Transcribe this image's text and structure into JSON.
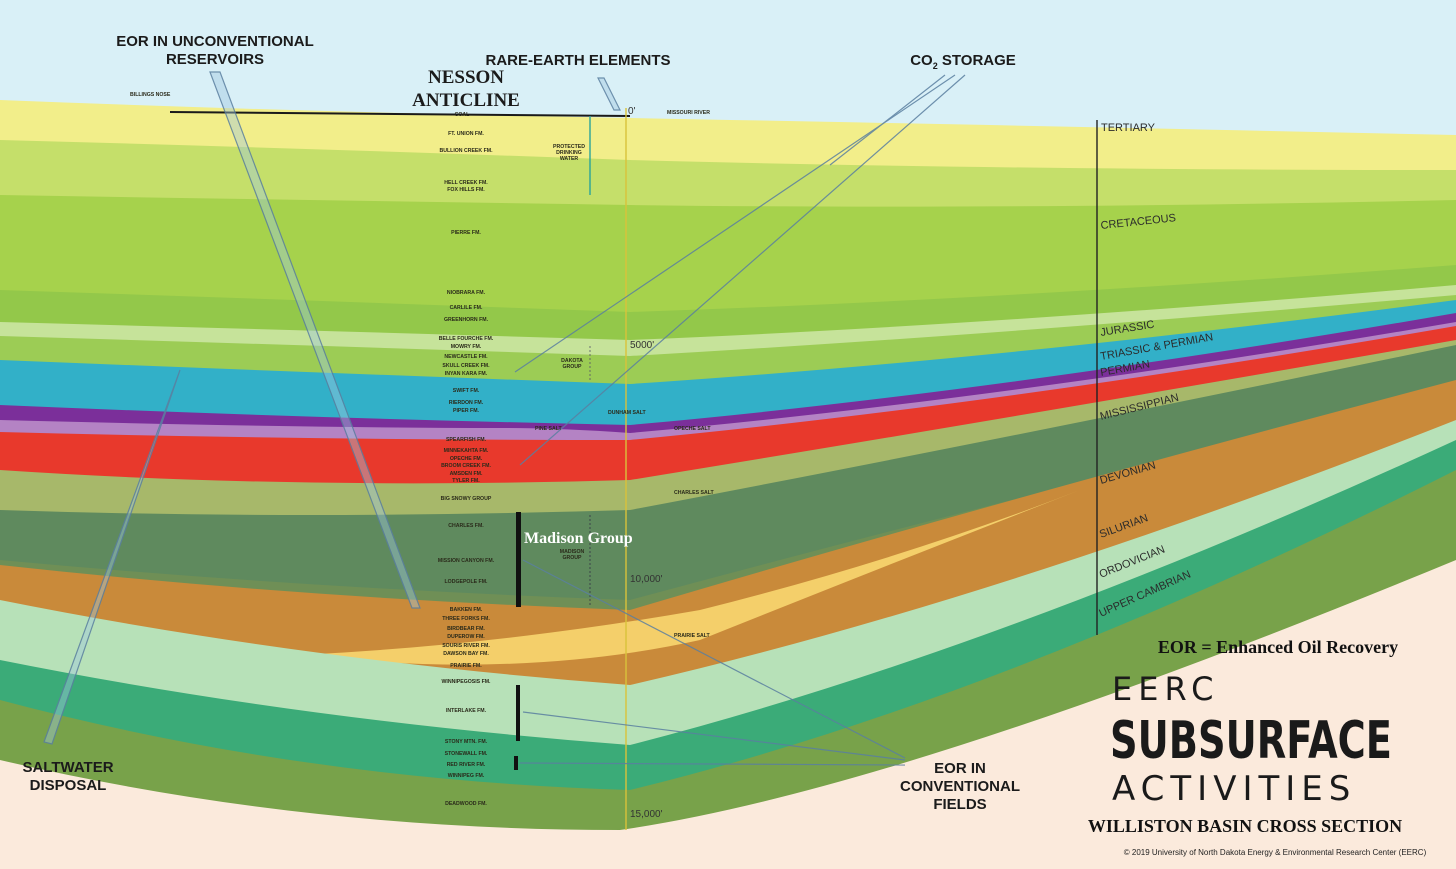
{
  "title": "WILLISTON BASIN CROSS SECTION",
  "brand": {
    "line1": "EERC",
    "line2": "SUBSURFACE",
    "line3": "ACTIVITIES"
  },
  "eor_definition": "EOR = Enhanced Oil Recovery",
  "copyright": "© 2019 University of North Dakota Energy & Environmental Research Center (EERC)",
  "callouts": {
    "eor_unconventional_1": "EOR IN UNCONVENTIONAL",
    "eor_unconventional_2": "RESERVOIRS",
    "rare_earth": "RARE-EARTH ELEMENTS",
    "co2_storage": "CO",
    "co2_sub": "2",
    "co2_storage_rest": " STORAGE",
    "nesson_1": "NESSON",
    "nesson_2": "ANTICLINE",
    "saltwater_1": "SALTWATER",
    "saltwater_2": "DISPOSAL",
    "eor_conventional_1": "EOR IN",
    "eor_conventional_2": "CONVENTIONAL",
    "eor_conventional_3": "FIELDS",
    "madison_group": "Madison Group"
  },
  "surface_labels": {
    "billings_nose": "BILLINGS NOSE",
    "missouri_river": "MISSOURI RIVER",
    "coal": "COAL",
    "protected_water_1": "PROTECTED",
    "protected_water_2": "DRINKING",
    "protected_water_3": "WATER",
    "dakota_group_1": "DAKOTA",
    "dakota_group_2": "GROUP",
    "madison_small_1": "MADISON",
    "madison_small_2": "GROUP",
    "dunham_salt": "DUNHAM SALT",
    "pine_salt": "PINE SALT",
    "opeche_salt": "OPECHE SALT",
    "charles_salt": "CHARLES SALT",
    "prairie_salt": "PRAIRIE SALT"
  },
  "depths": [
    "0'",
    "5000'",
    "10,000'",
    "15,000'"
  ],
  "periods": [
    "TERTIARY",
    "CRETACEOUS",
    "JURASSIC",
    "TRIASSIC & PERMIAN",
    "PERMIAN",
    "MISSISSIPPIAN",
    "DEVONIAN",
    "SILURIAN",
    "ORDOVICIAN",
    "UPPER CAMBRIAN"
  ],
  "formations": [
    "FT. UNION FM.",
    "BULLION CREEK FM.",
    "HELL CREEK FM.",
    "FOX HILLS FM.",
    "PIERRE FM.",
    "NIOBRARA FM.",
    "CARLILE FM.",
    "GREENHORN FM.",
    "BELLE FOURCHE FM.",
    "MOWRY FM.",
    "NEWCASTLE FM.",
    "SKULL CREEK FM.",
    "INYAN KARA FM.",
    "SWIFT FM.",
    "RIERDON FM.",
    "PIPER FM.",
    "SPEARFISH FM.",
    "MINNEKAHTA FM.",
    "OPECHE FM.",
    "BROOM CREEK FM.",
    "AMSDEN FM.",
    "TYLER FM.",
    "BIG SNOWY GROUP",
    "CHARLES FM.",
    "MISSION CANYON FM.",
    "LODGEPOLE FM.",
    "BAKKEN FM.",
    "THREE FORKS FM.",
    "BIRDBEAR FM.",
    "DUPEROW FM.",
    "SOURIS RIVER FM.",
    "DAWSON BAY FM.",
    "PRAIRIE FM.",
    "WINNIPEGOSIS FM.",
    "INTERLAKE FM.",
    "STONY MTN. FM.",
    "STONEWALL FM.",
    "RED RIVER FM.",
    "WINNIPEG FM.",
    "DEADWOOD FM."
  ],
  "colors": {
    "sky": "#d9f0f7",
    "base": "#fbeadc",
    "tertiary": "#f2ee8a",
    "cretaceous": "#a6d24c",
    "jurassic": "#32b0c8",
    "triassic_permian": "#7b2f9a",
    "permian": "#e8392c",
    "mississippian": "#5f8a5e",
    "devonian": "#c98a3a",
    "bakken_sand": "#f4cf6a",
    "silurian": "#b7e1b8",
    "ordovician": "#3bab78",
    "cambrian": "#78a24a"
  }
}
